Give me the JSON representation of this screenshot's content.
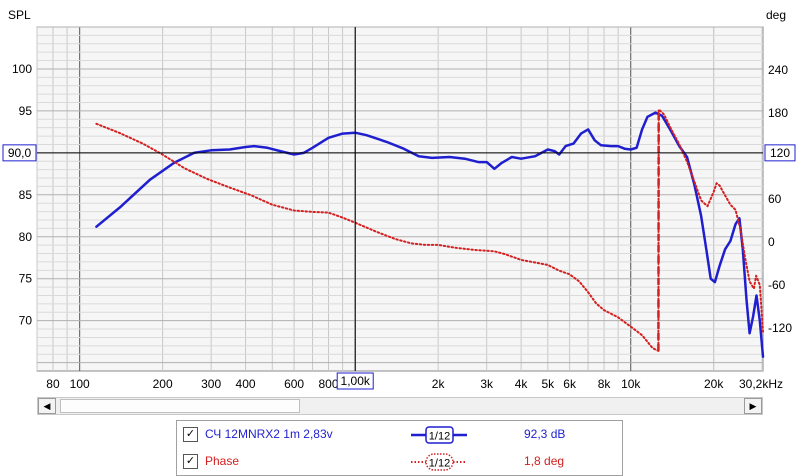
{
  "chart_data": {
    "type": "line",
    "y_left_label": "SPL",
    "y_right_label": "deg",
    "x_unit": "Hz",
    "x_scale": "log",
    "xlim": [
      70,
      30200
    ],
    "ylim_left": [
      64,
      105
    ],
    "ylim_right": [
      -180,
      300
    ],
    "x_tick_labels": [
      {
        "v": 80,
        "t": "80"
      },
      {
        "v": 100,
        "t": "100"
      },
      {
        "v": 200,
        "t": "200"
      },
      {
        "v": 300,
        "t": "300"
      },
      {
        "v": 400,
        "t": "400"
      },
      {
        "v": 600,
        "t": "600"
      },
      {
        "v": 800,
        "t": "800"
      },
      {
        "v": 2000,
        "t": "2k"
      },
      {
        "v": 3000,
        "t": "3k"
      },
      {
        "v": 4000,
        "t": "4k"
      },
      {
        "v": 5000,
        "t": "5k"
      },
      {
        "v": 6000,
        "t": "6k"
      },
      {
        "v": 8000,
        "t": "8k"
      },
      {
        "v": 10000,
        "t": "10k"
      },
      {
        "v": 20000,
        "t": "20k"
      },
      {
        "v": 30200,
        "t": "30,2kHz"
      }
    ],
    "y_left_ticks": [
      70,
      75,
      80,
      85,
      95,
      100
    ],
    "y_right_ticks": [
      -120,
      -60,
      0,
      60,
      180,
      240
    ],
    "cursor": {
      "x": 1000,
      "x_text": "1,00k",
      "y": 90.0,
      "y_text": "90,0",
      "y_right_text": "120"
    },
    "series": [
      {
        "name": "СЧ 12MNRX2 1m 2,83v",
        "axis": "left",
        "color": "#1f1fcf",
        "style": "solid",
        "points": [
          [
            115,
            81.2
          ],
          [
            140,
            83.5
          ],
          [
            180,
            86.8
          ],
          [
            220,
            88.8
          ],
          [
            260,
            90.0
          ],
          [
            300,
            90.3
          ],
          [
            350,
            90.4
          ],
          [
            400,
            90.7
          ],
          [
            430,
            90.8
          ],
          [
            480,
            90.6
          ],
          [
            550,
            90.1
          ],
          [
            600,
            89.8
          ],
          [
            650,
            90.0
          ],
          [
            700,
            90.6
          ],
          [
            800,
            91.8
          ],
          [
            900,
            92.3
          ],
          [
            1000,
            92.4
          ],
          [
            1100,
            92.1
          ],
          [
            1300,
            91.3
          ],
          [
            1500,
            90.5
          ],
          [
            1700,
            89.6
          ],
          [
            1900,
            89.4
          ],
          [
            2200,
            89.5
          ],
          [
            2500,
            89.3
          ],
          [
            2800,
            88.9
          ],
          [
            3000,
            88.9
          ],
          [
            3200,
            88.1
          ],
          [
            3400,
            88.8
          ],
          [
            3700,
            89.5
          ],
          [
            4000,
            89.3
          ],
          [
            4500,
            89.6
          ],
          [
            5000,
            90.4
          ],
          [
            5300,
            90.2
          ],
          [
            5500,
            89.8
          ],
          [
            5800,
            90.8
          ],
          [
            6200,
            91.1
          ],
          [
            6600,
            92.3
          ],
          [
            7000,
            92.8
          ],
          [
            7400,
            91.5
          ],
          [
            7800,
            90.9
          ],
          [
            8500,
            90.8
          ],
          [
            9000,
            90.8
          ],
          [
            9500,
            90.5
          ],
          [
            10000,
            90.4
          ],
          [
            10500,
            90.6
          ],
          [
            11000,
            92.8
          ],
          [
            11500,
            94.3
          ],
          [
            12300,
            94.8
          ],
          [
            13000,
            94.4
          ],
          [
            14000,
            92.6
          ],
          [
            15000,
            90.8
          ],
          [
            16000,
            89.5
          ],
          [
            17000,
            86.3
          ],
          [
            18000,
            82.5
          ],
          [
            18800,
            78.5
          ],
          [
            19500,
            75.0
          ],
          [
            20200,
            74.6
          ],
          [
            21000,
            76.5
          ],
          [
            22000,
            78.5
          ],
          [
            23000,
            79.5
          ],
          [
            24000,
            81.5
          ],
          [
            24800,
            82.2
          ],
          [
            25500,
            78.5
          ],
          [
            26300,
            72.5
          ],
          [
            27000,
            68.5
          ],
          [
            27800,
            70.5
          ],
          [
            28600,
            73.0
          ],
          [
            29400,
            70.0
          ],
          [
            30200,
            65.7
          ]
        ]
      },
      {
        "name": "Phase",
        "axis": "right",
        "color": "#d42020",
        "style": "dotted",
        "points": [
          [
            115,
            165
          ],
          [
            140,
            152
          ],
          [
            170,
            137
          ],
          [
            200,
            122
          ],
          [
            240,
            103
          ],
          [
            290,
            88
          ],
          [
            350,
            76
          ],
          [
            420,
            65
          ],
          [
            500,
            52
          ],
          [
            600,
            44
          ],
          [
            700,
            42
          ],
          [
            800,
            41
          ],
          [
            900,
            34
          ],
          [
            1000,
            27
          ],
          [
            1200,
            14
          ],
          [
            1400,
            4
          ],
          [
            1600,
            -2
          ],
          [
            1800,
            -4
          ],
          [
            2000,
            -4
          ],
          [
            2300,
            -8
          ],
          [
            2700,
            -11
          ],
          [
            3200,
            -13
          ],
          [
            3500,
            -17
          ],
          [
            4000,
            -25
          ],
          [
            5000,
            -32
          ],
          [
            5500,
            -40
          ],
          [
            6000,
            -45
          ],
          [
            6500,
            -55
          ],
          [
            7000,
            -70
          ],
          [
            7500,
            -86
          ],
          [
            8000,
            -95
          ],
          [
            9000,
            -105
          ],
          [
            10000,
            -118
          ],
          [
            11000,
            -130
          ],
          [
            12000,
            -148
          ],
          [
            12600,
            -152
          ],
          [
            12630,
            185
          ],
          [
            13200,
            178
          ],
          [
            14000,
            158
          ],
          [
            15000,
            136
          ],
          [
            16000,
            112
          ],
          [
            17000,
            85
          ],
          [
            18000,
            58
          ],
          [
            19000,
            50
          ],
          [
            20000,
            70
          ],
          [
            20500,
            82
          ],
          [
            21000,
            79
          ],
          [
            22000,
            65
          ],
          [
            23000,
            52
          ],
          [
            24000,
            45
          ],
          [
            25000,
            18
          ],
          [
            26000,
            -22
          ],
          [
            27000,
            -55
          ],
          [
            28000,
            -65
          ],
          [
            28500,
            -47
          ],
          [
            29400,
            -60
          ],
          [
            30200,
            -125
          ]
        ]
      }
    ]
  },
  "legend": {
    "rows": [
      {
        "checked": "✓",
        "name": "СЧ 12MNRX2 1m 2,83v",
        "smoothing": "1/12",
        "value": "92,3 dB",
        "color": "#1f1fcf"
      },
      {
        "checked": "✓",
        "name": "Phase",
        "smoothing": "1/12",
        "value": "1,8 deg",
        "color": "#d42020"
      }
    ]
  },
  "scrollbar": {
    "left_arrow": "◀",
    "right_arrow": "▶"
  }
}
